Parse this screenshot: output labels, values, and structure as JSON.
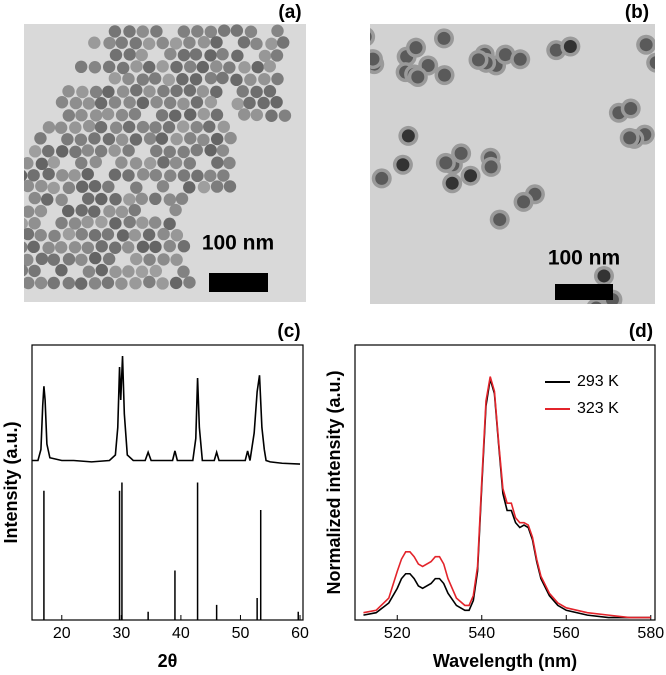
{
  "images": [
    {
      "label": "(a)",
      "scale_bar": "100 nm"
    },
    {
      "label": "(b)",
      "scale_bar": "100 nm"
    }
  ],
  "chart_data": [
    {
      "type": "line",
      "label": "(c)",
      "x_label": "2θ",
      "y_label": "Intensity (a.u.)",
      "xlim": [
        15,
        60.5
      ],
      "ylim": [
        0,
        100
      ],
      "xticks": [
        20,
        30,
        40,
        50,
        60
      ],
      "x": [
        15,
        16,
        16.5,
        16.8,
        17,
        17.2,
        17.5,
        18,
        20,
        22,
        25,
        28,
        29,
        29.4,
        29.7,
        29.9,
        30.2,
        30.5,
        31,
        32,
        34,
        34.5,
        35,
        38.6,
        39,
        39.4,
        42,
        42.5,
        42.8,
        43.1,
        43.6,
        45.6,
        46,
        46.4,
        50.8,
        51.2,
        51.6,
        52.3,
        52.8,
        53.2,
        53.6,
        54,
        54.3,
        55,
        57,
        60
      ],
      "series": [
        {
          "color": "#000000",
          "values": [
            58,
            58,
            62,
            78,
            85,
            80,
            64,
            59,
            58,
            58,
            57.5,
            58,
            60,
            70,
            92,
            80,
            96,
            75,
            60,
            58,
            58,
            61,
            58,
            58,
            61.5,
            58,
            58,
            66,
            88,
            70,
            58,
            58,
            61,
            58,
            58,
            61.5,
            58,
            68,
            83,
            89,
            70,
            62,
            58,
            57.5,
            57,
            56.7
          ]
        }
      ],
      "sticks": {
        "color": "#000000",
        "x": [
          17,
          29.7,
          30.1,
          34.5,
          39,
          42.8,
          46,
          52.8,
          53.4,
          59.7
        ],
        "values": [
          47,
          47,
          50,
          3,
          18,
          50,
          5.5,
          8,
          40,
          3
        ]
      }
    },
    {
      "type": "line",
      "label": "(d)",
      "x_label": "Wavelength (nm)",
      "y_label": "Normalized intensity (a.u.)",
      "xlim": [
        510,
        581
      ],
      "ylim": [
        0,
        1.13
      ],
      "xticks": [
        520,
        540,
        560,
        580
      ],
      "legend": "upper right",
      "x": [
        512,
        515,
        518,
        520,
        521,
        522,
        523,
        524,
        525,
        526,
        528,
        529,
        530,
        531,
        532,
        534,
        536,
        537,
        538,
        539,
        540,
        541,
        542,
        543,
        544,
        545,
        546,
        547,
        548,
        549,
        550,
        551,
        552,
        553,
        554,
        556,
        558,
        560,
        565,
        570,
        575,
        580
      ],
      "series": [
        {
          "name": "293 K",
          "color": "#000000",
          "values": [
            0.02,
            0.03,
            0.07,
            0.13,
            0.17,
            0.19,
            0.19,
            0.17,
            0.14,
            0.13,
            0.15,
            0.17,
            0.17,
            0.15,
            0.11,
            0.06,
            0.04,
            0.04,
            0.08,
            0.2,
            0.55,
            0.88,
            0.99,
            0.93,
            0.72,
            0.52,
            0.45,
            0.45,
            0.4,
            0.38,
            0.39,
            0.38,
            0.33,
            0.24,
            0.17,
            0.1,
            0.06,
            0.04,
            0.02,
            0.01,
            0.01,
            0.01
          ]
        },
        {
          "name": "323 K",
          "color": "#e3242b",
          "values": [
            0.03,
            0.04,
            0.09,
            0.2,
            0.25,
            0.28,
            0.28,
            0.26,
            0.23,
            0.22,
            0.24,
            0.26,
            0.26,
            0.23,
            0.17,
            0.09,
            0.06,
            0.06,
            0.1,
            0.22,
            0.57,
            0.9,
            1.0,
            0.94,
            0.73,
            0.54,
            0.48,
            0.48,
            0.42,
            0.4,
            0.4,
            0.39,
            0.34,
            0.25,
            0.18,
            0.11,
            0.07,
            0.05,
            0.03,
            0.02,
            0.01,
            0.01
          ]
        }
      ]
    }
  ]
}
